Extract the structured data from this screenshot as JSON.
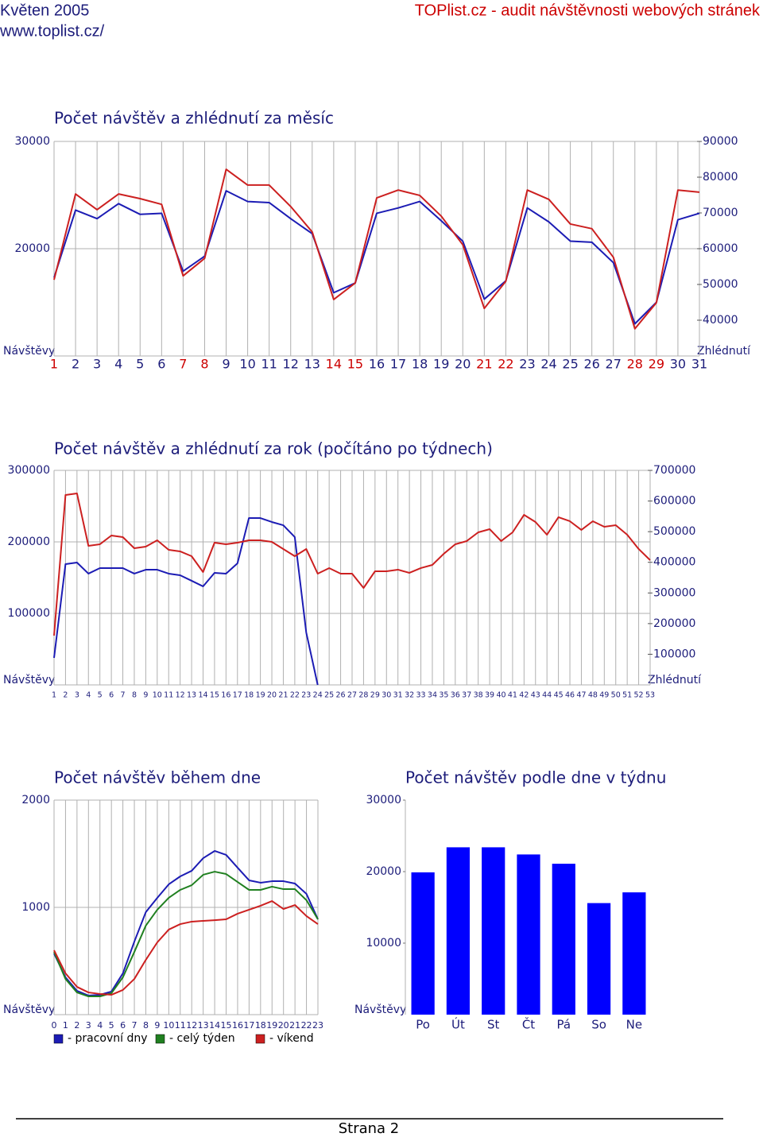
{
  "header": {
    "period": "Květen 2005",
    "site": "www.toplist.cz/",
    "title": "TOPlist.cz - audit návštěvnosti webových stránek"
  },
  "chart_data": [
    {
      "type": "line",
      "title": "Počet návštěv a zhlédnutí za měsíc",
      "ylabel": "Návštěvy",
      "y2label": "Zhlédnutí",
      "categories": [
        "1",
        "2",
        "3",
        "4",
        "5",
        "6",
        "7",
        "8",
        "9",
        "10",
        "11",
        "12",
        "13",
        "14",
        "15",
        "16",
        "17",
        "18",
        "19",
        "20",
        "21",
        "22",
        "23",
        "24",
        "25",
        "26",
        "27",
        "28",
        "29",
        "30",
        "31"
      ],
      "category_colors": [
        "#cc0000",
        "#1c1c7a",
        "#1c1c7a",
        "#1c1c7a",
        "#1c1c7a",
        "#1c1c7a",
        "#cc0000",
        "#cc0000",
        "#1c1c7a",
        "#1c1c7a",
        "#1c1c7a",
        "#1c1c7a",
        "#1c1c7a",
        "#cc0000",
        "#cc0000",
        "#1c1c7a",
        "#1c1c7a",
        "#1c1c7a",
        "#1c1c7a",
        "#1c1c7a",
        "#cc0000",
        "#cc0000",
        "#1c1c7a",
        "#1c1c7a",
        "#1c1c7a",
        "#1c1c7a",
        "#1c1c7a",
        "#cc0000",
        "#cc0000",
        "#1c1c7a",
        "#1c1c7a"
      ],
      "ylim": [
        10000,
        30000
      ],
      "yticks": [
        20000,
        30000
      ],
      "y2lim": [
        30000,
        90000
      ],
      "y2ticks": [
        40000,
        50000,
        60000,
        70000,
        80000,
        90000
      ],
      "grid": true,
      "series": [
        {
          "color": "#1c1cb4",
          "values": [
            17300,
            23600,
            22800,
            24200,
            23200,
            23300,
            17900,
            19300,
            25400,
            24400,
            24300,
            22800,
            21400,
            15900,
            16800,
            23300,
            23800,
            24400,
            22600,
            20700,
            15300,
            17000,
            23800,
            22500,
            20700,
            20600,
            18700,
            13000,
            15000,
            22700,
            23300
          ]
        },
        {
          "color": "#cc2020",
          "axis": "y2",
          "values": [
            51300,
            75300,
            70900,
            75300,
            74000,
            72400,
            52400,
            57300,
            82200,
            77800,
            77800,
            71800,
            64700,
            45800,
            50400,
            74200,
            76400,
            74900,
            69100,
            61100,
            43300,
            50900,
            76400,
            73800,
            66900,
            65600,
            57600,
            37600,
            44900,
            76400,
            75800
          ]
        }
      ]
    },
    {
      "type": "line",
      "title": "Počet návštěv a zhlédnutí za rok (počítáno po týdnech)",
      "ylabel": "Návštěvy",
      "y2label": "Zhlédnutí",
      "categories": [
        "1",
        "2",
        "3",
        "4",
        "5",
        "6",
        "7",
        "8",
        "9",
        "10",
        "11",
        "12",
        "13",
        "14",
        "15",
        "16",
        "17",
        "18",
        "19",
        "20",
        "21",
        "22",
        "23",
        "24",
        "25",
        "26",
        "27",
        "28",
        "29",
        "30",
        "31",
        "32",
        "33",
        "34",
        "35",
        "36",
        "37",
        "38",
        "39",
        "40",
        "41",
        "42",
        "43",
        "44",
        "45",
        "46",
        "47",
        "48",
        "49",
        "50",
        "51",
        "52",
        "53"
      ],
      "ylim": [
        0,
        300000
      ],
      "yticks": [
        100000,
        200000,
        300000
      ],
      "y2lim": [
        0,
        700000
      ],
      "y2ticks": [
        100000,
        200000,
        300000,
        400000,
        500000,
        600000,
        700000
      ],
      "grid": true,
      "series": [
        {
          "color": "#1c1cb4",
          "values": [
            37800,
            168900,
            171100,
            155600,
            163300,
            163300,
            163300,
            155600,
            161100,
            161100,
            155600,
            153300,
            145600,
            137800,
            156700,
            155600,
            170000,
            233300,
            233300,
            227800,
            223300,
            206700,
            73300,
            0,
            null,
            null,
            null,
            null,
            null,
            null,
            null,
            null,
            null,
            null,
            null,
            null,
            null,
            null,
            null,
            null,
            null,
            null,
            null,
            null,
            null,
            null,
            null,
            null,
            null,
            null,
            null,
            null,
            null
          ]
        },
        {
          "color": "#cc2020",
          "axis": "y2",
          "values": [
            160800,
            619700,
            624900,
            453700,
            458900,
            487400,
            482200,
            446000,
            451100,
            471900,
            440800,
            435600,
            420000,
            368200,
            464100,
            458900,
            464100,
            471900,
            471900,
            466700,
            443400,
            420000,
            443400,
            363000,
            381200,
            363000,
            363000,
            316300,
            370800,
            370800,
            376000,
            365600,
            381200,
            391500,
            427900,
            458900,
            469300,
            497800,
            508200,
            469300,
            497800,
            554900,
            531500,
            490000,
            547100,
            534100,
            505600,
            534100,
            516000,
            521200,
            490000,
            443400,
            407100
          ]
        }
      ]
    },
    {
      "type": "line",
      "title": "Počet návštěv během dne",
      "ylabel": "Návštěvy",
      "categories": [
        "0",
        "1",
        "2",
        "3",
        "4",
        "5",
        "6",
        "7",
        "8",
        "9",
        "10",
        "11",
        "12",
        "13",
        "14",
        "15",
        "16",
        "17",
        "18",
        "19",
        "20",
        "21",
        "22",
        "23"
      ],
      "ylim": [
        0,
        2000
      ],
      "yticks": [
        1000,
        2000
      ],
      "grid": true,
      "legend": "bottom",
      "series": [
        {
          "name": "- pracovní dny",
          "color": "#1c1cb4",
          "values": [
            570,
            348,
            222,
            178,
            185,
            215,
            385,
            681,
            956,
            1089,
            1215,
            1289,
            1341,
            1459,
            1526,
            1489,
            1370,
            1252,
            1230,
            1244,
            1244,
            1222,
            1126,
            889
          ]
        },
        {
          "name": "- celý týden",
          "color": "#208020",
          "values": [
            585,
            333,
            207,
            170,
            170,
            200,
            348,
            585,
            830,
            978,
            1089,
            1163,
            1207,
            1304,
            1333,
            1311,
            1237,
            1163,
            1163,
            1193,
            1170,
            1170,
            1067,
            889
          ]
        },
        {
          "name": "- víkend",
          "color": "#cc2020",
          "values": [
            600,
            385,
            259,
            207,
            193,
            185,
            230,
            333,
            511,
            674,
            793,
            844,
            867,
            874,
            881,
            889,
            941,
            978,
            1015,
            1059,
            985,
            1022,
            919,
            844
          ]
        }
      ]
    },
    {
      "type": "bar",
      "title": "Počet návštěv podle dne v týdnu",
      "ylabel": "Návštěvy",
      "categories": [
        "Po",
        "Út",
        "St",
        "Čt",
        "Pá",
        "So",
        "Ne"
      ],
      "values": [
        19900,
        23400,
        23400,
        22400,
        21100,
        15600,
        17100
      ],
      "color": "#0000ff",
      "ylim": [
        0,
        30000
      ],
      "yticks": [
        10000,
        20000,
        30000
      ],
      "grid": false
    }
  ],
  "footer": {
    "page": "Strana 2"
  }
}
